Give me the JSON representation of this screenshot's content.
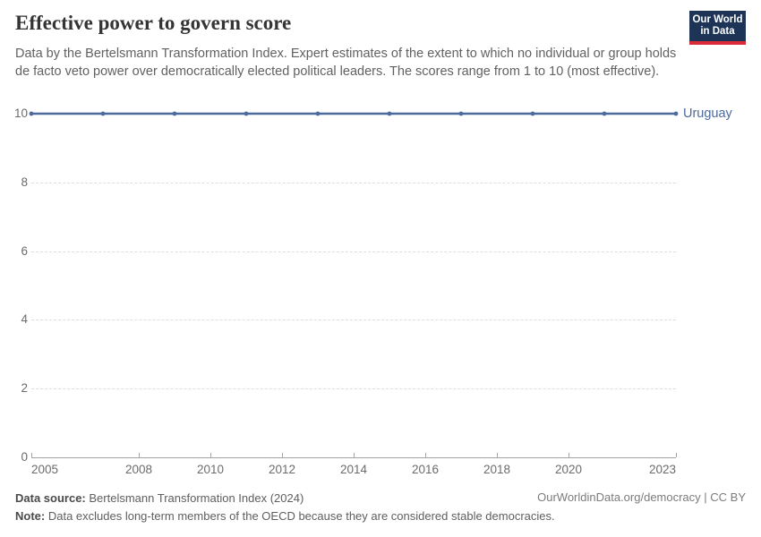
{
  "header": {
    "title": "Effective power to govern score",
    "subtitle": "Data by the Bertelsmann Transformation Index. Expert estimates of the extent to which no individual or group holds de facto veto power over democratically elected political leaders. The scores range from 1 to 10 (most effective).",
    "logo": {
      "line1": "Our World",
      "line2": "in Data",
      "bg_color": "#1d3456",
      "bar_color": "#db2b39"
    }
  },
  "chart_data": {
    "type": "line",
    "x": [
      2005,
      2007,
      2009,
      2011,
      2013,
      2015,
      2017,
      2019,
      2021,
      2023
    ],
    "series": [
      {
        "name": "Uruguay",
        "values": [
          10,
          10,
          10,
          10,
          10,
          10,
          10,
          10,
          10,
          10
        ],
        "color": "#4c6a9c"
      }
    ],
    "title": "Effective power to govern score",
    "xlabel": "",
    "ylabel": "",
    "xlim": [
      2005,
      2023
    ],
    "ylim": [
      0,
      10
    ],
    "x_ticks": [
      2005,
      2008,
      2010,
      2012,
      2014,
      2016,
      2018,
      2020,
      2023
    ],
    "y_ticks": [
      0,
      2,
      4,
      6,
      8,
      10
    ],
    "grid": "horizontal-dashed",
    "legend_position": "end-of-line",
    "grid_color": "#dedede",
    "axis_color": "#a3a3a3",
    "tick_label_color": "#6b6b6b"
  },
  "footer": {
    "source_label": "Data source:",
    "source_text": "Bertelsmann Transformation Index (2024)",
    "note_label": "Note:",
    "note_text": "Data excludes long-term members of the OECD because they are considered stable democracies.",
    "credit": "OurWorldinData.org/democracy | CC BY"
  }
}
